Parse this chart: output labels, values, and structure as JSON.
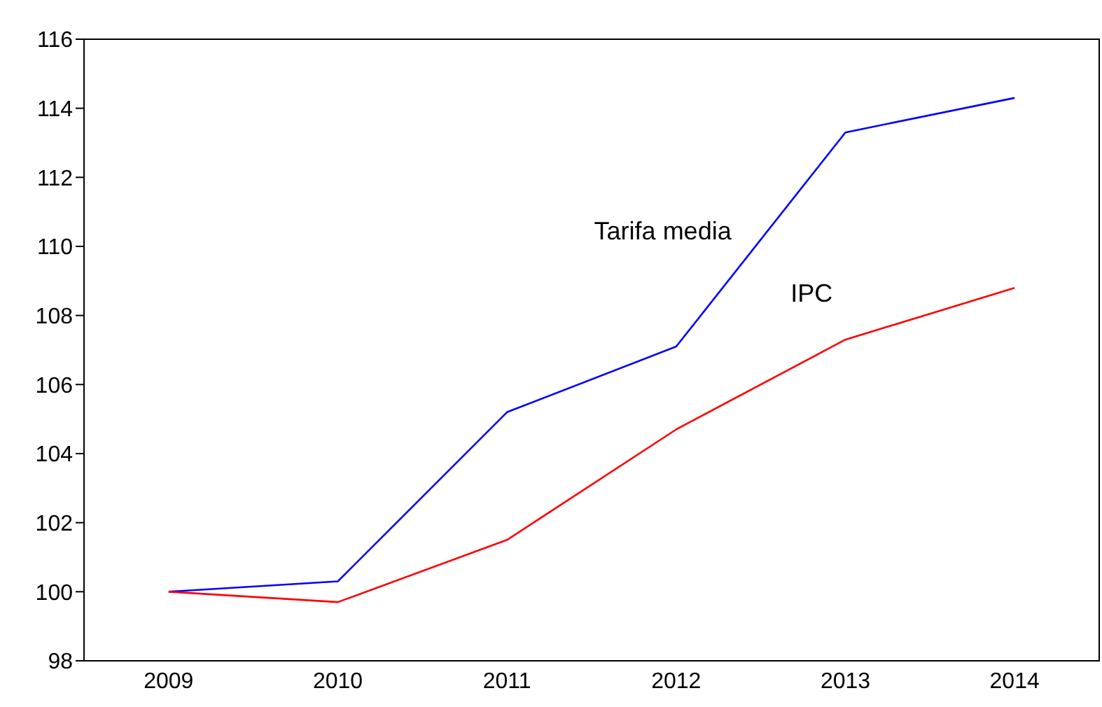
{
  "chart_data": {
    "type": "line",
    "categories": [
      "2009",
      "2010",
      "2011",
      "2012",
      "2013",
      "2014"
    ],
    "series": [
      {
        "name": "Tarifa media",
        "color": "#0000ff",
        "values": [
          100,
          100.3,
          105.2,
          107.1,
          113.3,
          114.3
        ]
      },
      {
        "name": "IPC",
        "color": "#ff0000",
        "values": [
          100,
          99.7,
          101.5,
          104.7,
          107.3,
          108.8
        ]
      }
    ],
    "ylim": [
      98,
      116
    ],
    "yticks": [
      98,
      100,
      102,
      104,
      106,
      108,
      110,
      112,
      114,
      116
    ],
    "grid": false,
    "legend": false,
    "marker": "none",
    "line_style": "solid"
  }
}
